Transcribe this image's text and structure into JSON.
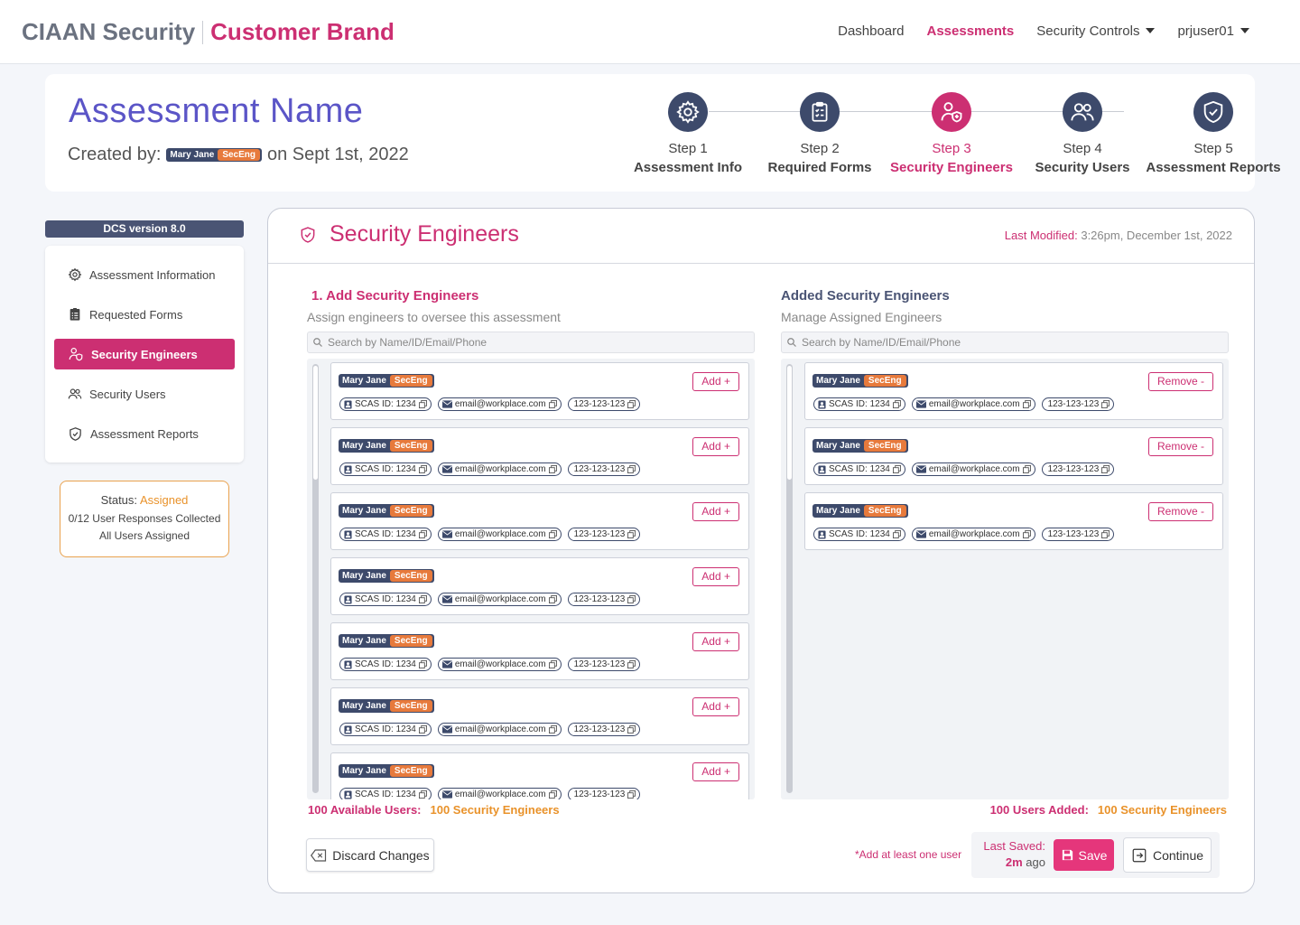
{
  "brand": {
    "primary": "CIAAN Security",
    "secondary": "Customer Brand"
  },
  "nav": {
    "dashboard": "Dashboard",
    "assessments": "Assessments",
    "security_controls": "Security Controls",
    "user": "prjuser01"
  },
  "header": {
    "assessment_name": "Assessment Name",
    "created_by_label": "Created by:",
    "creator_name": "Mary Jane",
    "creator_role": "SecEng",
    "created_on": "on Sept 1st, 2022",
    "steps": [
      {
        "num": "Step 1",
        "label": "Assessment Info"
      },
      {
        "num": "Step 2",
        "label": "Required Forms"
      },
      {
        "num": "Step 3",
        "label": "Security Engineers"
      },
      {
        "num": "Step 4",
        "label": "Security Users"
      },
      {
        "num": "Step 5",
        "label": "Assessment Reports"
      }
    ]
  },
  "sidebar": {
    "version": "DCS version 8.0",
    "items": [
      "Assessment Information",
      "Requested Forms",
      "Security Engineers",
      "Security Users",
      "Assessment Reports"
    ],
    "status_label": "Status:",
    "status_value": "Assigned",
    "responses": "0/12 User Responses Collected",
    "assigned": "All Users Assigned"
  },
  "main": {
    "title": "Security Engineers",
    "last_modified_label": "Last Modified:",
    "last_modified_value": "3:26pm, December 1st, 2022",
    "left": {
      "title": "1.  Add Security Engineers",
      "subtitle": "Assign engineers to oversee this assessment",
      "search_placeholder": "Search by Name/ID/Email/Phone",
      "button": "Add +",
      "count_a": "100 Available Users:",
      "count_b": "100 Security Engineers"
    },
    "right": {
      "title": "Added Security Engineers",
      "subtitle": "Manage Assigned Engineers",
      "search_placeholder": "Search by Name/ID/Email/Phone",
      "button": "Remove -",
      "count_a": "100 Users Added:",
      "count_b": "100 Security Engineers"
    },
    "person": {
      "name": "Mary Jane",
      "role": "SecEng",
      "id": "SCAS ID: 1234",
      "email": "email@workplace.com",
      "phone": "123-123-123"
    }
  },
  "footer": {
    "discard": "Discard Changes",
    "note": "*Add at least one user",
    "last_saved_label": "Last Saved:",
    "last_saved_value": "2m",
    "last_saved_suffix": "ago",
    "save": "Save",
    "continue": "Continue"
  },
  "colors": {
    "accent": "#cc2f72",
    "navy": "#3d4a6b",
    "orange": "#e9922a"
  }
}
